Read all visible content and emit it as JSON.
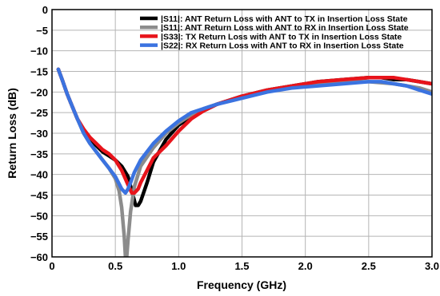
{
  "chart_data": {
    "type": "line",
    "title": "",
    "xlabel": "Frequency (GHz)",
    "ylabel": "Return Loss (dB)",
    "xlim": [
      0,
      3.0
    ],
    "ylim": [
      -60,
      0
    ],
    "x_ticks": [
      0,
      0.5,
      1.0,
      1.5,
      2.0,
      2.5,
      3.0
    ],
    "x_tick_labels": [
      "0",
      "0.5",
      "1.0",
      "1.5",
      "2.0",
      "2.5",
      "3.0"
    ],
    "y_ticks": [
      0,
      -5,
      -10,
      -15,
      -20,
      -25,
      -30,
      -35,
      -40,
      -45,
      -50,
      -55,
      -60
    ],
    "y_tick_labels": [
      "0",
      "−5",
      "−10",
      "−15",
      "−20",
      "−25",
      "−30",
      "−35",
      "−40",
      "−45",
      "−50",
      "−55",
      "−60"
    ],
    "grid": true,
    "legend_position": "top-right",
    "series": [
      {
        "name": "|S11|: ANT Return Loss with ANT to TX in Insertion Loss State",
        "color": "#000000",
        "x": [
          0.05,
          0.08,
          0.12,
          0.16,
          0.2,
          0.25,
          0.3,
          0.35,
          0.4,
          0.45,
          0.5,
          0.55,
          0.6,
          0.63,
          0.66,
          0.68,
          0.7,
          0.75,
          0.8,
          0.9,
          1.0,
          1.1,
          1.2,
          1.3,
          1.5,
          1.7,
          1.9,
          2.1,
          2.3,
          2.5,
          2.6,
          2.7,
          2.8,
          2.9,
          3.0
        ],
        "y": [
          -14.5,
          -17,
          -20.5,
          -23.5,
          -26.5,
          -29.5,
          -31.5,
          -33,
          -34.5,
          -35.5,
          -36.5,
          -38,
          -40.5,
          -44,
          -47.5,
          -47.5,
          -46.5,
          -42,
          -37,
          -31.5,
          -28,
          -26,
          -24.5,
          -23,
          -21,
          -19.5,
          -18.5,
          -17.5,
          -17,
          -16.5,
          -16.5,
          -17,
          -17,
          -17.5,
          -18
        ]
      },
      {
        "name": "|S11|: ANT Return Loss with ANT to RX in Insertion Loss State",
        "color": "#8c8c8c",
        "x": [
          0.05,
          0.08,
          0.12,
          0.16,
          0.2,
          0.25,
          0.3,
          0.35,
          0.4,
          0.45,
          0.5,
          0.53,
          0.55,
          0.57,
          0.58,
          0.59,
          0.6,
          0.62,
          0.65,
          0.7,
          0.8,
          0.9,
          1.0,
          1.1,
          1.2,
          1.3,
          1.5,
          1.7,
          1.9,
          2.1,
          2.3,
          2.5,
          2.7,
          2.9,
          3.0
        ],
        "y": [
          -14.5,
          -17,
          -20.5,
          -23.5,
          -26.5,
          -30,
          -32.5,
          -34.5,
          -36.5,
          -38.5,
          -41,
          -44,
          -48,
          -55,
          -60,
          -60,
          -56,
          -49,
          -43,
          -38,
          -33.5,
          -30,
          -27.5,
          -25.5,
          -24,
          -23,
          -21,
          -19.5,
          -18.5,
          -18,
          -17.5,
          -17.5,
          -18,
          -19,
          -20
        ]
      },
      {
        "name": "|S33|: TX Return Loss with ANT to TX in Insertion Loss State",
        "color": "#e8141b",
        "x": [
          0.05,
          0.08,
          0.12,
          0.16,
          0.2,
          0.25,
          0.3,
          0.35,
          0.4,
          0.45,
          0.5,
          0.55,
          0.6,
          0.63,
          0.65,
          0.68,
          0.7,
          0.75,
          0.8,
          0.9,
          1.0,
          1.1,
          1.2,
          1.3,
          1.5,
          1.7,
          1.9,
          2.1,
          2.3,
          2.5,
          2.6,
          2.7,
          2.8,
          2.9,
          3.0
        ],
        "y": [
          -14.5,
          -17,
          -20.5,
          -23.5,
          -26.5,
          -29,
          -31,
          -32.5,
          -34,
          -35,
          -36.5,
          -39,
          -42.5,
          -44.5,
          -44.5,
          -43.5,
          -42,
          -39,
          -36,
          -33,
          -29.5,
          -26.5,
          -24.5,
          -23,
          -21,
          -19.5,
          -18.5,
          -17.5,
          -17,
          -16.5,
          -16.5,
          -16.5,
          -17,
          -17.5,
          -18
        ]
      },
      {
        "name": "|S22|: RX Return Loss with ANT to RX in Insertion Loss State",
        "color": "#3b73e0",
        "x": [
          0.05,
          0.08,
          0.12,
          0.16,
          0.2,
          0.25,
          0.3,
          0.35,
          0.4,
          0.45,
          0.5,
          0.55,
          0.58,
          0.6,
          0.62,
          0.65,
          0.7,
          0.8,
          0.9,
          1.0,
          1.1,
          1.2,
          1.3,
          1.5,
          1.7,
          1.9,
          2.1,
          2.3,
          2.5,
          2.6,
          2.7,
          2.8,
          2.9,
          3.0
        ],
        "y": [
          -14.5,
          -17,
          -20.5,
          -23.5,
          -26.5,
          -30,
          -32.5,
          -34.5,
          -36.5,
          -38.5,
          -40.5,
          -43.5,
          -44.5,
          -43.5,
          -42,
          -39.5,
          -36.5,
          -32.5,
          -29.5,
          -27,
          -25,
          -24,
          -23,
          -21.5,
          -20,
          -19,
          -18.5,
          -18,
          -17.5,
          -17.5,
          -18,
          -18.5,
          -19.5,
          -20.5
        ]
      }
    ]
  }
}
